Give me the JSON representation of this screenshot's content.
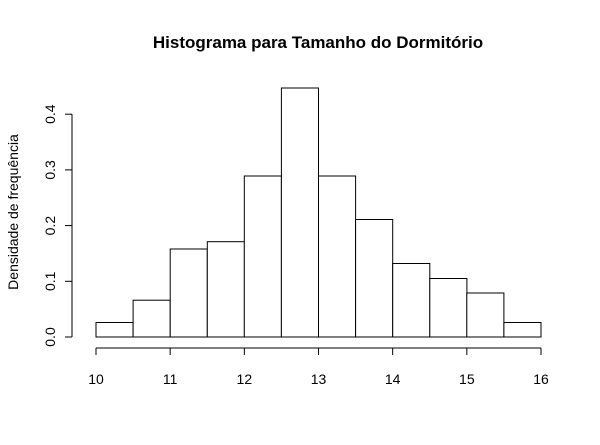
{
  "chart_data": {
    "type": "bar",
    "title": "Histograma para Tamanho do Dormitório",
    "xlabel": "",
    "ylabel": "Densidade de frequência",
    "xlim": [
      10,
      16
    ],
    "ylim": [
      0,
      0.45
    ],
    "x_ticks": [
      "10",
      "11",
      "12",
      "13",
      "14",
      "15",
      "16"
    ],
    "y_ticks": [
      "0.0",
      "0.1",
      "0.2",
      "0.3",
      "0.4"
    ],
    "bin_edges": [
      10,
      10.5,
      11,
      11.5,
      12,
      12.5,
      13,
      13.5,
      14,
      14.5,
      15,
      15.5,
      16
    ],
    "values": [
      0.026,
      0.066,
      0.158,
      0.171,
      0.289,
      0.447,
      0.289,
      0.211,
      0.132,
      0.105,
      0.079,
      0.026
    ],
    "grid": false,
    "bar_fill": "#ffffff",
    "bar_stroke": "#000000"
  }
}
